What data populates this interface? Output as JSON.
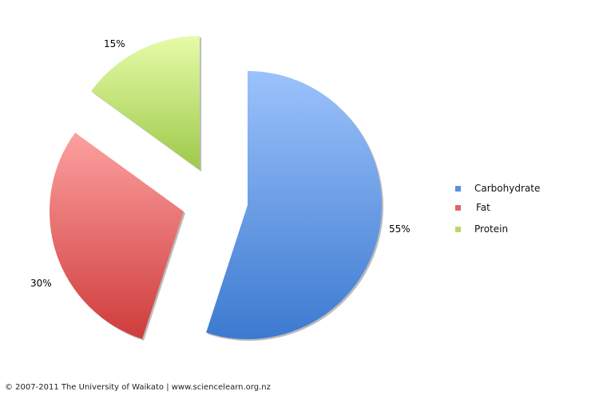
{
  "chart_data": {
    "type": "pie",
    "categories": [
      "Carbohydrate",
      "Fat",
      "Protein"
    ],
    "values": [
      55,
      30,
      15
    ],
    "data_labels": [
      "55%",
      "30%",
      "15%"
    ],
    "colors": [
      "#5b8fdc",
      "#e06666",
      "#b5d96a"
    ],
    "exploded": true,
    "legend_position": "right"
  },
  "footer": "© 2007-2011 The University of Waikato | www.sciencelearn.org.nz"
}
